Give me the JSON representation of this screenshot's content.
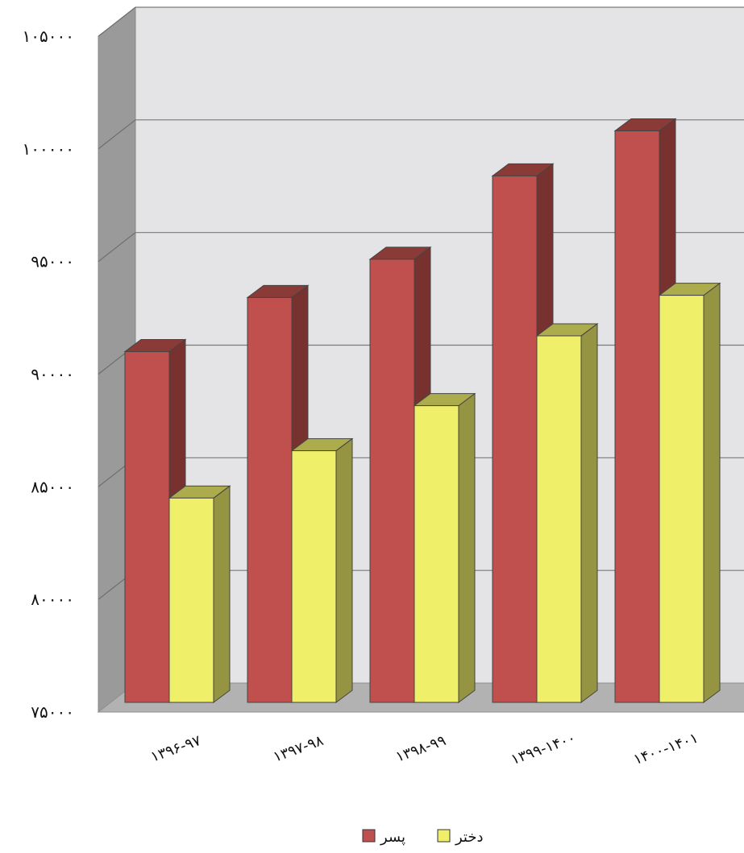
{
  "chart_data": {
    "type": "bar",
    "title": "",
    "xlabel": "",
    "ylabel": "",
    "categories": [
      "۱۳۹۶-۹۷",
      "۱۳۹۷-۹۸",
      "۱۳۹۸-۹۹",
      "۱۳۹۹-۱۴۰۰",
      "۱۴۰۰-۱۴۰۱"
    ],
    "series": [
      {
        "name": "پسر",
        "color": "#c0504d",
        "values": [
          91000,
          93400,
          95100,
          98800,
          100800
        ]
      },
      {
        "name": "دختر",
        "color": "#f0ef6a",
        "values": [
          84500,
          86600,
          88600,
          91700,
          93500
        ]
      }
    ],
    "ylim": [
      75000,
      105000
    ],
    "y_ticks": [
      {
        "value": 105000,
        "label": "۱۰۵۰۰۰"
      },
      {
        "value": 100000,
        "label": "۱۰۰۰۰۰"
      },
      {
        "value": 95000,
        "label": "۹۵۰۰۰"
      },
      {
        "value": 90000,
        "label": "۹۰۰۰۰"
      },
      {
        "value": 85000,
        "label": "۸۵۰۰۰"
      },
      {
        "value": 80000,
        "label": "۸۰۰۰۰"
      },
      {
        "value": 75000,
        "label": "۷۵۰۰۰"
      }
    ],
    "grid": true,
    "style": "3d-clustered-column",
    "legend_position": "bottom"
  }
}
